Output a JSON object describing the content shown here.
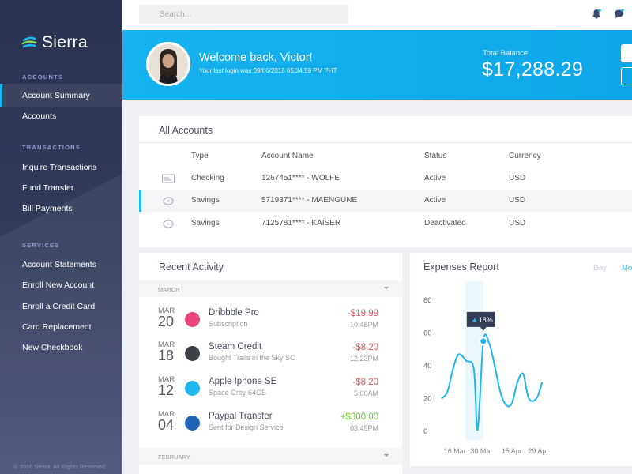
{
  "brand": {
    "name": "Sierra"
  },
  "sidebar": {
    "sections": [
      {
        "label": "ACCOUNTS",
        "items": [
          "Account Summary",
          "Accounts"
        ]
      },
      {
        "label": "TRANSACTIONS",
        "items": [
          "Inquire Transactions",
          "Fund Transfer",
          "Bill Payments"
        ]
      },
      {
        "label": "SERVICES",
        "items": [
          "Account Statements",
          "Enroll New Account",
          "Enroll a Credit Card",
          "Card Replacement",
          "New Checkbook"
        ]
      }
    ],
    "active": "Account Summary",
    "copyright": "© 2016 Sierra. All Rights Reserved."
  },
  "topbar": {
    "search_placeholder": "Search..."
  },
  "banner": {
    "welcome": "Welcome back, Victor!",
    "last_login": "Your last login was 09/06/2016 05:34:59 PM PHT",
    "balance_label": "Total Balance",
    "balance_value": "$17,288.29"
  },
  "accounts": {
    "title": "All Accounts",
    "columns": [
      "Type",
      "Account Name",
      "Status",
      "Currency"
    ],
    "rows": [
      {
        "type": "Checking",
        "name": "1267451**** - WOLFE",
        "status": "Active",
        "currency": "USD",
        "icon": "checking-icon"
      },
      {
        "type": "Savings",
        "name": "5719371**** - MAENGUNE",
        "status": "Active",
        "currency": "USD",
        "icon": "piggy-bank-icon"
      },
      {
        "type": "Savings",
        "name": "7125781**** - KAISER",
        "status": "Deactivated",
        "currency": "USD",
        "icon": "piggy-bank-icon"
      }
    ]
  },
  "activity": {
    "title": "Recent Activity",
    "month1": "MARCH",
    "month2": "FEBRUARY",
    "items": [
      {
        "mon": "MAR",
        "day": "20",
        "name": "Dribbble Pro",
        "sub": "Subscription",
        "amount": "-$19.99",
        "time": "10:48PM",
        "color": "#e8457a",
        "icon": "dribbble-icon"
      },
      {
        "mon": "MAR",
        "day": "18",
        "name": "Steam Credit",
        "sub": "Bought Trails in the Sky SC",
        "amount": "-$8.20",
        "time": "12:23PM",
        "color": "#3b3f46",
        "icon": "steam-icon"
      },
      {
        "mon": "MAR",
        "day": "12",
        "name": "Apple Iphone SE",
        "sub": "Space Grey 64GB",
        "amount": "-$8.20",
        "time": "5:00AM",
        "color": "#1fb6f0",
        "icon": "apple-store-icon"
      },
      {
        "mon": "MAR",
        "day": "04",
        "name": "Paypal Transfer",
        "sub": "Sent for Design Service",
        "amount": "+$300.00",
        "time": "03:49PM",
        "color": "#1f64b8",
        "icon": "paypal-icon"
      }
    ],
    "neg_color": "#e05656",
    "pos_color": "#6ec234"
  },
  "expenses": {
    "title": "Expenses Report",
    "tabs": [
      "Day",
      "Mo"
    ],
    "tooltip": "18%"
  },
  "chart_data": {
    "type": "line",
    "title": "Expenses Report",
    "xlabel": "",
    "ylabel": "",
    "ylim": [
      0,
      80
    ],
    "yticks": [
      0,
      20,
      40,
      60,
      80
    ],
    "xticks": [
      "16 Mar",
      "30 Mar",
      "15 Apr",
      "29 Apr"
    ],
    "grid": false,
    "series": [
      {
        "x": [
          "9 Mar",
          "12 Mar",
          "15 Mar",
          "18 Mar",
          "22 Mar",
          "26 Mar",
          "28 Mar",
          "31 Mar",
          "3 Apr",
          "6 Apr",
          "9 Apr",
          "12 Apr",
          "15 Apr",
          "18 Apr",
          "21 Apr",
          "24 Apr",
          "28 Apr",
          "1 May"
        ],
        "values": [
          20,
          24,
          38,
          47,
          43,
          38,
          1,
          55,
          54,
          40,
          24,
          16,
          17,
          30,
          35,
          20,
          20,
          30
        ],
        "color": "#1fb6f0"
      }
    ],
    "highlight": {
      "x": "31 Mar",
      "value": 55,
      "label": "18%"
    }
  }
}
